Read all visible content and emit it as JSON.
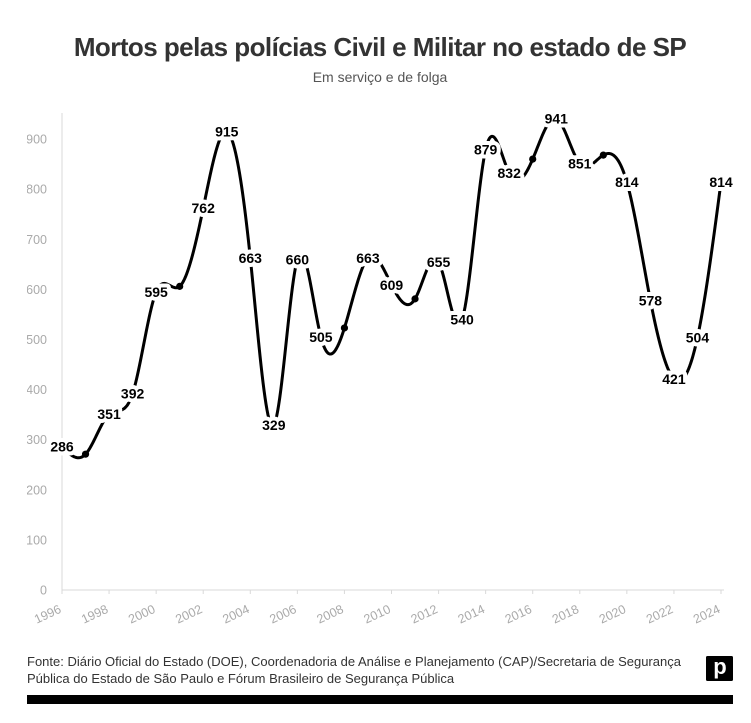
{
  "chart_data": {
    "type": "line",
    "title": "Mortos pelas polícias Civil e Militar no estado de SP",
    "subtitle": "Em serviço e de folga",
    "xlabel": "",
    "ylabel": "",
    "x": [
      1996,
      1997,
      1998,
      1999,
      2000,
      2001,
      2002,
      2003,
      2004,
      2005,
      2006,
      2007,
      2008,
      2009,
      2010,
      2011,
      2012,
      2013,
      2014,
      2015,
      2016,
      2017,
      2018,
      2019,
      2020,
      2021,
      2022,
      2023,
      2024
    ],
    "values": [
      286,
      271,
      351,
      392,
      595,
      606,
      762,
      915,
      663,
      329,
      660,
      505,
      523,
      663,
      609,
      581,
      655,
      540,
      879,
      832,
      860,
      941,
      851,
      868,
      814,
      578,
      421,
      504,
      814
    ],
    "data_labels": [
      "286",
      null,
      "351",
      "392",
      "595",
      null,
      "762",
      "915",
      "663",
      "329",
      "660",
      "505",
      null,
      "663",
      "609",
      null,
      "655",
      "540",
      "879",
      "832",
      null,
      "941",
      "851",
      null,
      "814",
      "578",
      "421",
      "504",
      "814"
    ],
    "x_ticks": [
      "1996",
      "1998",
      "2000",
      "2002",
      "2004",
      "2006",
      "2008",
      "2010",
      "2012",
      "2014",
      "2016",
      "2018",
      "2020",
      "2022",
      "2024"
    ],
    "y_ticks": [
      "0",
      "100",
      "200",
      "300",
      "400",
      "500",
      "600",
      "700",
      "800",
      "900"
    ],
    "xlim": [
      1996,
      2024
    ],
    "ylim": [
      0,
      950
    ],
    "grid": false,
    "legend": "none",
    "line_shape": "smooth"
  },
  "footer": {
    "source": "Fonte: Diário Oficial do Estado (DOE), Coordenadoria de Análise e Planejamento (CAP)/Secretaria de Segurança Pública do Estado de São Paulo e Fórum Brasileiro de Segurança Pública",
    "logo_letter": "p"
  },
  "colors": {
    "line": "#000000",
    "marker": "#000000",
    "data_label": "#000000",
    "axis": "#d9d9d9",
    "tick_label": "#aaaaaa",
    "title": "#333333",
    "subtitle": "#555555",
    "source": "#333333",
    "bottom_bar": "#000000",
    "background": "#ffffff"
  }
}
